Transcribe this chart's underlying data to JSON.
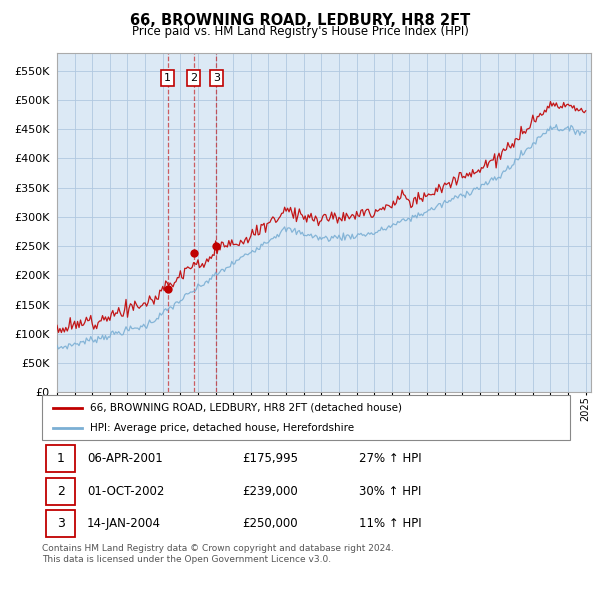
{
  "title": "66, BROWNING ROAD, LEDBURY, HR8 2FT",
  "subtitle": "Price paid vs. HM Land Registry's House Price Index (HPI)",
  "hpi_label": "HPI: Average price, detached house, Herefordshire",
  "property_label": "66, BROWNING ROAD, LEDBURY, HR8 2FT (detached house)",
  "footer1": "Contains HM Land Registry data © Crown copyright and database right 2024.",
  "footer2": "This data is licensed under the Open Government Licence v3.0.",
  "transactions": [
    {
      "num": 1,
      "date": "06-APR-2001",
      "price": "£175,995",
      "hpi": "27% ↑ HPI"
    },
    {
      "num": 2,
      "date": "01-OCT-2002",
      "price": "£239,000",
      "hpi": "30% ↑ HPI"
    },
    {
      "num": 3,
      "date": "14-JAN-2004",
      "price": "£250,000",
      "hpi": "11% ↑ HPI"
    }
  ],
  "transaction_dates_year": [
    2001.27,
    2002.75,
    2004.04
  ],
  "transaction_prices": [
    175995,
    239000,
    250000
  ],
  "ylim": [
    0,
    580000
  ],
  "yticks": [
    0,
    50000,
    100000,
    150000,
    200000,
    250000,
    300000,
    350000,
    400000,
    450000,
    500000,
    550000
  ],
  "hpi_color": "#7bafd4",
  "property_color": "#c00000",
  "background_color": "#dce9f5",
  "grid_color": "#b0c8e0",
  "outer_bg": "#ffffff"
}
